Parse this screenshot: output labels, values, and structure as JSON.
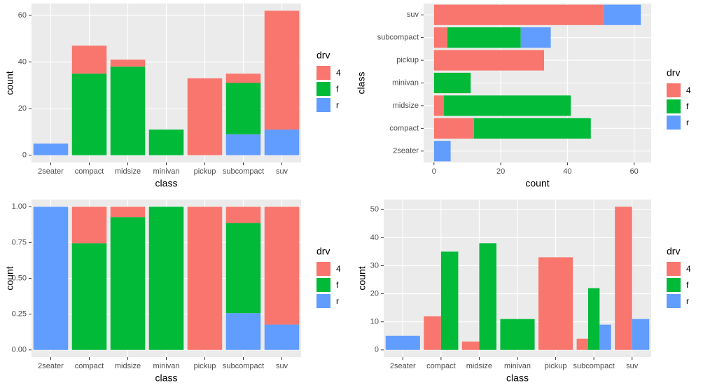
{
  "charts": [
    {
      "type": "bar",
      "position": "stack",
      "orientation": "vertical",
      "categories": [
        "2seater",
        "compact",
        "midsize",
        "minivan",
        "pickup",
        "subcompact",
        "suv"
      ],
      "series": [
        {
          "name": "4",
          "color": "#F8766D",
          "values": [
            null,
            12,
            3,
            null,
            33,
            4,
            51
          ]
        },
        {
          "name": "f",
          "color": "#00BA38",
          "values": [
            null,
            35,
            38,
            11,
            null,
            22,
            null
          ]
        },
        {
          "name": "r",
          "color": "#619CFF",
          "values": [
            5,
            null,
            null,
            null,
            null,
            9,
            11
          ]
        }
      ],
      "ylim": [
        -3.1,
        65.1
      ],
      "yticks": [
        0,
        20,
        40,
        60
      ],
      "x_label": "class",
      "y_label": "count",
      "legend_title": "drv",
      "grid": true
    },
    {
      "type": "bar",
      "position": "stack",
      "orientation": "horizontal",
      "categories": [
        "2seater",
        "compact",
        "midsize",
        "minivan",
        "pickup",
        "subcompact",
        "suv"
      ],
      "series": [
        {
          "name": "4",
          "color": "#F8766D",
          "values": [
            null,
            12,
            3,
            null,
            33,
            4,
            51
          ]
        },
        {
          "name": "f",
          "color": "#00BA38",
          "values": [
            null,
            35,
            38,
            11,
            null,
            22,
            null
          ]
        },
        {
          "name": "r",
          "color": "#619CFF",
          "values": [
            5,
            null,
            null,
            null,
            null,
            9,
            11
          ]
        }
      ],
      "xlim": [
        -3.1,
        65.1
      ],
      "xticks": [
        0,
        20,
        40,
        60
      ],
      "x_label": "count",
      "y_label": "class",
      "legend_title": "drv",
      "grid": true
    },
    {
      "type": "bar",
      "position": "fill",
      "orientation": "vertical",
      "categories": [
        "2seater",
        "compact",
        "midsize",
        "minivan",
        "pickup",
        "subcompact",
        "suv"
      ],
      "series": [
        {
          "name": "4",
          "color": "#F8766D",
          "values": [
            null,
            0.255,
            0.073,
            null,
            1,
            0.114,
            0.823
          ]
        },
        {
          "name": "f",
          "color": "#00BA38",
          "values": [
            null,
            0.745,
            0.927,
            1,
            null,
            0.629,
            null
          ]
        },
        {
          "name": "r",
          "color": "#619CFF",
          "values": [
            1,
            null,
            null,
            null,
            null,
            0.257,
            0.177
          ]
        }
      ],
      "ylim": [
        -0.05,
        1.05
      ],
      "yticks": [
        {
          "value": 0,
          "label": "0.00"
        },
        {
          "value": 0.25,
          "label": "0.25"
        },
        {
          "value": 0.5,
          "label": "0.50"
        },
        {
          "value": 0.75,
          "label": "0.75"
        },
        {
          "value": 1,
          "label": "1.00"
        }
      ],
      "x_label": "class",
      "y_label": "count",
      "legend_title": "drv",
      "grid": true
    },
    {
      "type": "bar",
      "position": "dodge",
      "orientation": "vertical",
      "categories": [
        "2seater",
        "compact",
        "midsize",
        "minivan",
        "pickup",
        "subcompact",
        "suv"
      ],
      "series": [
        {
          "name": "4",
          "color": "#F8766D",
          "values": [
            null,
            12,
            3,
            null,
            33,
            4,
            51
          ]
        },
        {
          "name": "f",
          "color": "#00BA38",
          "values": [
            null,
            35,
            38,
            11,
            null,
            22,
            null
          ]
        },
        {
          "name": "r",
          "color": "#619CFF",
          "values": [
            5,
            null,
            null,
            null,
            null,
            9,
            11
          ]
        }
      ],
      "ylim": [
        -2.55,
        53.55
      ],
      "yticks": [
        0,
        10,
        20,
        30,
        40,
        50
      ],
      "x_label": "class",
      "y_label": "count",
      "legend_title": "drv",
      "grid": true
    }
  ]
}
